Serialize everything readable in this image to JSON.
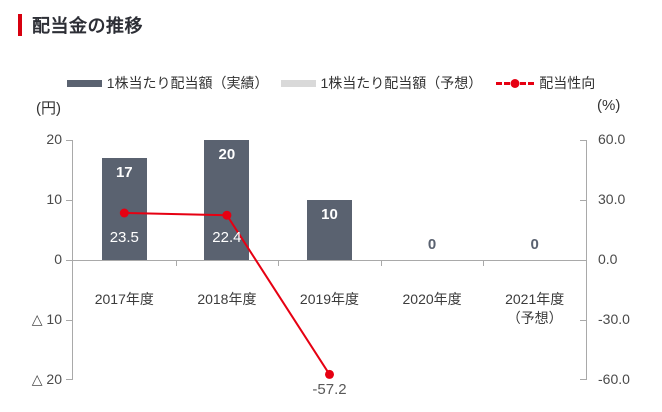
{
  "title": "配当金の推移",
  "legend": {
    "actual": "1株当たり配当額（実績）",
    "forecast": "1株当たり配当額（予想）",
    "payout": "配当性向"
  },
  "colors": {
    "accent_red": "#e60012",
    "title_bar_red": "#d7000f",
    "bar_actual": "#5a6270",
    "bar_forecast": "#d9d9d9",
    "axis_gray": "#a9a9a9",
    "axis_text": "#4a4a4a",
    "category_text": "#3c3c3c",
    "bar_label_white": "#ffffff",
    "zero_label_gray": "#5a6270",
    "point_label_gray": "#595959"
  },
  "chart_data": {
    "type": "bar+line",
    "title": "配当金の推移",
    "categories": [
      [
        "2017年度"
      ],
      [
        "2018年度"
      ],
      [
        "2019年度"
      ],
      [
        "2020年度"
      ],
      [
        "2021年度",
        "（予想）"
      ]
    ],
    "bar_series": {
      "name": "1株当たり配当額（実績）",
      "unit": "円",
      "values": [
        17,
        20,
        10,
        0,
        0
      ]
    },
    "forecast_series": {
      "name": "1株当たり配当額（予想）",
      "unit": "円",
      "values": [
        null,
        null,
        null,
        null,
        null
      ]
    },
    "line_series": {
      "name": "配当性向",
      "unit": "%",
      "points": [
        {
          "category_index": 0,
          "category": "2017年度",
          "value": 23.5,
          "label": "23.5",
          "label_color": "#ffffff",
          "label_dy": 16
        },
        {
          "category_index": 1,
          "category": "2018年度",
          "value": 22.4,
          "label": "22.4",
          "label_color": "#ffffff",
          "label_dy": 14
        },
        {
          "category_index": 2,
          "category": "2019年度",
          "value": -57.2,
          "label": "-57.2",
          "label_color": "#595959",
          "label_dy": 7
        }
      ]
    },
    "left_axis": {
      "unit": "(円)",
      "ticks": [
        "20",
        "10",
        "0",
        "△ 10",
        "△ 20"
      ],
      "range": [
        -20,
        20
      ]
    },
    "right_axis": {
      "unit": "(%)",
      "ticks": [
        "60.0",
        "30.0",
        "0.0",
        "-30.0",
        "-60.0"
      ],
      "range": [
        -60,
        60
      ]
    },
    "grid": false,
    "legend_position": "top"
  }
}
